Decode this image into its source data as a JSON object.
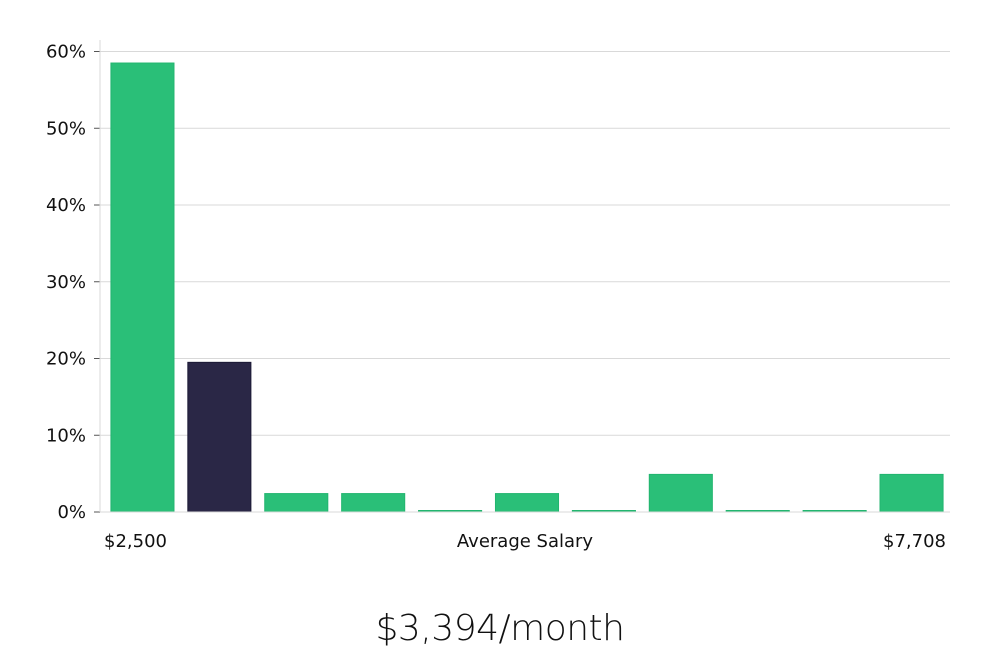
{
  "summary": {
    "salary_text": "$3,394/month"
  },
  "colors": {
    "bar": "#2ABF78",
    "bar_stroke": "#22B56F",
    "highlight": "#2A2746",
    "grid": "#D9D9D9",
    "axis": "#D9D9D9"
  },
  "chart_data": {
    "type": "bar",
    "title": "",
    "xlabel": "Average Salary",
    "ylabel": "",
    "x_tick_labels": [
      "$2,500",
      "$7,708"
    ],
    "y_tick_labels": [
      "0%",
      "10%",
      "20%",
      "30%",
      "40%",
      "50%",
      "60%"
    ],
    "y_ticks": [
      0,
      10,
      20,
      30,
      40,
      50,
      60
    ],
    "ylim": [
      0,
      61.5
    ],
    "grid": true,
    "categories": [
      "1",
      "2",
      "3",
      "4",
      "5",
      "6",
      "7",
      "8",
      "9",
      "10",
      "11"
    ],
    "values": [
      58.5,
      19.5,
      2.4,
      2.4,
      0,
      2.4,
      0,
      4.9,
      0,
      0,
      4.9
    ],
    "highlight_index": 1
  }
}
